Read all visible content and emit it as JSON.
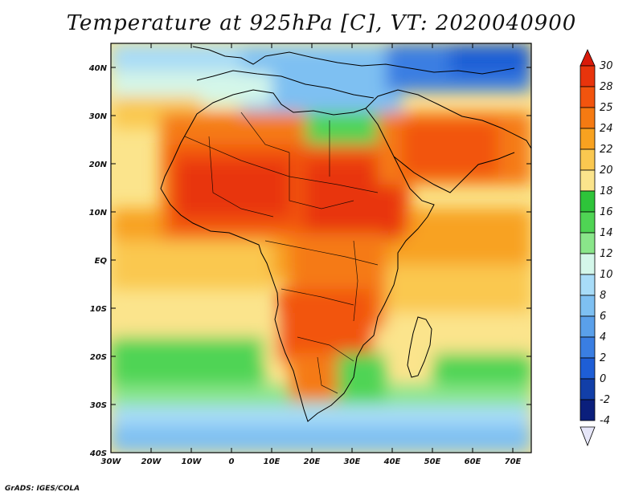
{
  "title": "Temperature at 925hPa [C], VT: 2020040900",
  "credit": "GrADS: IGES/COLA",
  "map": {
    "lat_ticks": [
      "40N",
      "30N",
      "20N",
      "10N",
      "EQ",
      "10S",
      "20S",
      "30S",
      "40S"
    ],
    "lon_ticks": [
      "30W",
      "20W",
      "10W",
      "0",
      "10E",
      "20E",
      "30E",
      "40E",
      "50E",
      "60E",
      "70E"
    ]
  },
  "colorbar": {
    "levels": [
      "30",
      "28",
      "25",
      "24",
      "22",
      "20",
      "18",
      "16",
      "14",
      "12",
      "10",
      "8",
      "6",
      "4",
      "2",
      "0",
      "-2",
      "-4"
    ],
    "colors": [
      "#e8340c",
      "#f2540e",
      "#f57a12",
      "#f8a220",
      "#fac850",
      "#fbe48c",
      "#2ec43a",
      "#4fd454",
      "#8ae68a",
      "#d4f7ea",
      "#a8dcf8",
      "#7ec0f2",
      "#5aa0ea",
      "#3a7ee2",
      "#1e5ed6",
      "#123fa8",
      "#0b1f7c",
      "#e6e6f8"
    ],
    "top_arrow_color": "#d91a0a",
    "bottom_arrow_color": "#e6e6f8"
  }
}
